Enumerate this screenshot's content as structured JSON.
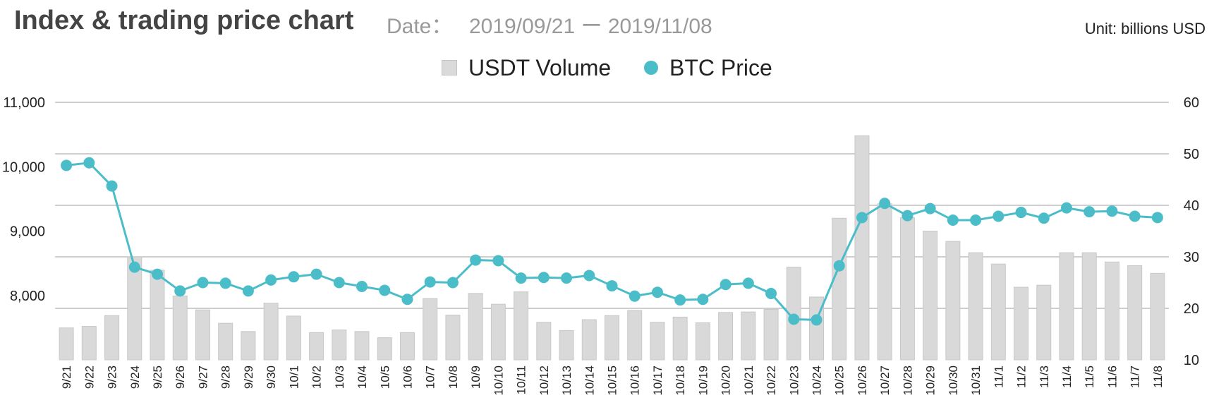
{
  "header": {
    "title": "Index & trading price chart",
    "date_label": "Date：",
    "date_range": "2019/09/21 ー 2019/11/08",
    "unit": "Unit: billions USD"
  },
  "colors": {
    "bar": "#d9d9d9",
    "bar_stroke": "#c8c8c8",
    "line": "#4bbdc9",
    "grid": "#bdbdbd"
  },
  "chart_data": {
    "type": "bar",
    "title": "Index & trading price chart",
    "categories": [
      "9/21",
      "9/22",
      "9/23",
      "9/24",
      "9/25",
      "9/26",
      "9/27",
      "9/28",
      "9/29",
      "9/30",
      "10/1",
      "10/2",
      "10/3",
      "10/4",
      "10/5",
      "10/6",
      "10/7",
      "10/8",
      "10/9",
      "10/10",
      "10/11",
      "10/12",
      "10/13",
      "10/14",
      "10/15",
      "10/16",
      "10/17",
      "10/18",
      "10/19",
      "10/20",
      "10/21",
      "10/22",
      "10/23",
      "10/24",
      "10/25",
      "10/26",
      "10/27",
      "10/28",
      "10/29",
      "10/30",
      "10/31",
      "11/1",
      "11/2",
      "11/3",
      "11/4",
      "11/5",
      "11/6",
      "11/7",
      "11/8"
    ],
    "series": [
      {
        "name": "USDT Volume",
        "type": "bar",
        "axis": "right",
        "values": [
          16.2,
          16.5,
          18.6,
          30.0,
          27.4,
          22.4,
          19.7,
          17.1,
          15.5,
          21.0,
          18.5,
          15.3,
          15.8,
          15.5,
          14.3,
          15.3,
          21.9,
          18.7,
          22.9,
          20.8,
          23.2,
          17.3,
          15.7,
          17.8,
          18.6,
          19.6,
          17.3,
          18.3,
          17.2,
          19.2,
          19.3,
          19.8,
          28.0,
          22.2,
          37.5,
          53.5,
          40.3,
          37.6,
          35.0,
          33.0,
          30.8,
          28.6,
          24.1,
          24.5,
          30.8,
          30.8,
          29.0,
          28.3,
          26.8
        ]
      },
      {
        "name": "BTC Price",
        "type": "line",
        "axis": "left",
        "values": [
          10020,
          10060,
          9700,
          8440,
          8330,
          8070,
          8200,
          8190,
          8070,
          8240,
          8290,
          8330,
          8200,
          8140,
          8080,
          7940,
          8210,
          8200,
          8550,
          8540,
          8270,
          8280,
          8270,
          8310,
          8150,
          7990,
          8050,
          7930,
          7940,
          8170,
          8190,
          8030,
          7630,
          7620,
          8460,
          9210,
          9430,
          9240,
          9350,
          9170,
          9170,
          9230,
          9290,
          9200,
          9360,
          9300,
          9310,
          9230,
          9210
        ]
      }
    ],
    "left_axis": {
      "ylim": [
        7000,
        11000
      ],
      "ticks": [
        "8,000",
        "9,000",
        "10,000",
        "11,000"
      ],
      "tick_values": [
        8000,
        9000,
        10000,
        11000
      ]
    },
    "right_axis": {
      "ylim": [
        10,
        60
      ],
      "ticks": [
        "10",
        "20",
        "30",
        "40",
        "50",
        "60"
      ],
      "tick_values": [
        10,
        20,
        30,
        40,
        50,
        60
      ]
    },
    "xlabel": "",
    "ylabel": "",
    "grid": true,
    "legend": "top-center"
  }
}
